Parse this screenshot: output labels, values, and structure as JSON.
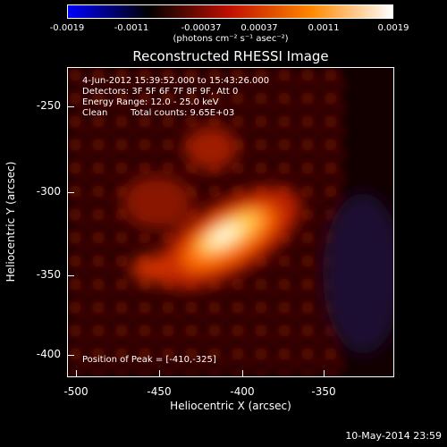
{
  "colorbar": {
    "ticks": [
      "-0.0019",
      "-0.0011",
      "-0.00037",
      "0.00037",
      "0.0011",
      "0.0019"
    ],
    "unit_label": "(photons cm⁻² s⁻¹ asec⁻²)",
    "colors": [
      "#0000ff",
      "#000000",
      "#c01000",
      "#ff8800",
      "#ffffff"
    ]
  },
  "title": "Reconstructed RHESSI Image",
  "info": {
    "time_range": "4-Jun-2012 15:39:52.000 to 15:43:26.000",
    "detectors": "Detectors: 3F 5F 6F 7F 8F 9F, Att 0",
    "energy_range": "Energy Range: 12.0 - 25.0 keV",
    "algorithm": "Clean",
    "total_counts": "Total counts: 9.65E+03",
    "peak_position": "Position of Peak = [-410,-325]"
  },
  "axes": {
    "x_title": "Heliocentric X (arcsec)",
    "y_title": "Heliocentric Y (arcsec)",
    "x_ticks": [
      "-500",
      "-450",
      "-400",
      "-350"
    ],
    "y_ticks": [
      "-250",
      "-300",
      "-350",
      "-400"
    ],
    "x_range": [
      -505,
      -320
    ],
    "y_range": [
      -417,
      -235
    ]
  },
  "footer": {
    "timestamp": "10-May-2014 23:59"
  }
}
